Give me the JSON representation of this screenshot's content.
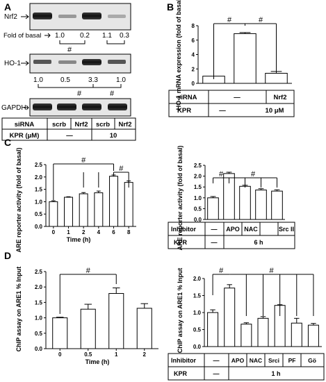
{
  "panels": {
    "A": {
      "letter": "A",
      "labels": {
        "nrf2": "Nrf2",
        "ho1": "HO-1",
        "gapdh": "GAPDH",
        "fold": "Fold of basal"
      },
      "nrf2_fold": [
        "1.0",
        "0.2",
        "1.1",
        "0.3"
      ],
      "ho1_fold": [
        "1.0",
        "0.5",
        "3.3",
        "1.0"
      ],
      "hash": "#",
      "table": {
        "row1_label": "siRNA",
        "row1": [
          "scrb",
          "Nrf2",
          "scrb",
          "Nrf2"
        ],
        "row2_label": "KPR (μM)",
        "row2": [
          "—",
          "10"
        ]
      }
    },
    "B": {
      "letter": "B",
      "hash": "#",
      "table": {
        "row1_label": "siRNA",
        "row1": [
          "—",
          "Nrf2"
        ],
        "row2_label": "KPR",
        "row2": [
          "—",
          "10 μM"
        ]
      }
    },
    "C": {
      "letter": "C",
      "hash": "#",
      "table": {
        "row1_label": "Inhibitor",
        "row1": [
          "—",
          "APO",
          "NAC",
          "Src II"
        ],
        "row2_label": "KPR",
        "row2": [
          "—",
          "6 h"
        ]
      }
    },
    "D": {
      "letter": "D",
      "hash": "#",
      "table": {
        "row1_label": "Inhibitor",
        "row1": [
          "—",
          "APO",
          "NAC",
          "Srci",
          "PF",
          "Gö"
        ],
        "row2_label": "KPR",
        "row2": [
          "—",
          "1 h"
        ]
      }
    }
  },
  "chart_data": [
    {
      "id": "B",
      "type": "bar",
      "ylabel": "HO-1 mRNA expression (fold of basal)",
      "ylim": [
        0,
        8
      ],
      "yticks": [
        "0",
        "2",
        "4",
        "6",
        "8"
      ],
      "values": [
        1.0,
        6.9,
        1.4
      ],
      "errors": [
        0.0,
        0.15,
        0.25
      ]
    },
    {
      "id": "C-left",
      "type": "bar",
      "ylabel": "ARE reporter activity (fold of basal)",
      "xlabel": "Time (h)",
      "ylim": [
        0,
        2.5
      ],
      "yticks": [
        "0.0",
        "0.5",
        "1.0",
        "1.5",
        "2.0",
        "2.5"
      ],
      "categories": [
        "0",
        "1",
        "2",
        "4",
        "6",
        "8"
      ],
      "values": [
        1.0,
        1.18,
        1.32,
        1.36,
        2.03,
        1.78
      ],
      "errors": [
        0.04,
        0.02,
        0.05,
        0.07,
        0.05,
        0.06
      ]
    },
    {
      "id": "C-right",
      "type": "bar",
      "ylabel": "ARE reporter activity (fold of basal)",
      "ylim": [
        0,
        2.5
      ],
      "yticks": [
        "0.0",
        "0.5",
        "1.0",
        "1.5",
        "2.0",
        "2.5"
      ],
      "values": [
        1.0,
        2.12,
        1.53,
        1.36,
        1.31
      ],
      "errors": [
        0.06,
        0.06,
        0.05,
        0.06,
        0.06
      ]
    },
    {
      "id": "D-left",
      "type": "bar",
      "ylabel": "ChIP assay on ARE1 % Input",
      "xlabel": "Time (h)",
      "ylim": [
        0,
        2.5
      ],
      "yticks": [
        "0.0",
        "0.5",
        "1.0",
        "1.5",
        "2.0",
        "2.5"
      ],
      "categories": [
        "0",
        "0.5",
        "1",
        "2"
      ],
      "values": [
        1.0,
        1.28,
        1.79,
        1.31
      ],
      "errors": [
        0.02,
        0.16,
        0.18,
        0.15
      ]
    },
    {
      "id": "D-right",
      "type": "bar",
      "ylabel": "ChIP assay on ARE1 % Input",
      "ylim": [
        0,
        2.0
      ],
      "yticks": [
        "0.0",
        "0.5",
        "1.0",
        "1.5",
        "2.0"
      ],
      "values": [
        1.0,
        1.72,
        0.66,
        0.83,
        1.21,
        0.69,
        0.63
      ],
      "errors": [
        0.08,
        0.1,
        0.04,
        0.05,
        0.02,
        0.14,
        0.05
      ]
    }
  ]
}
